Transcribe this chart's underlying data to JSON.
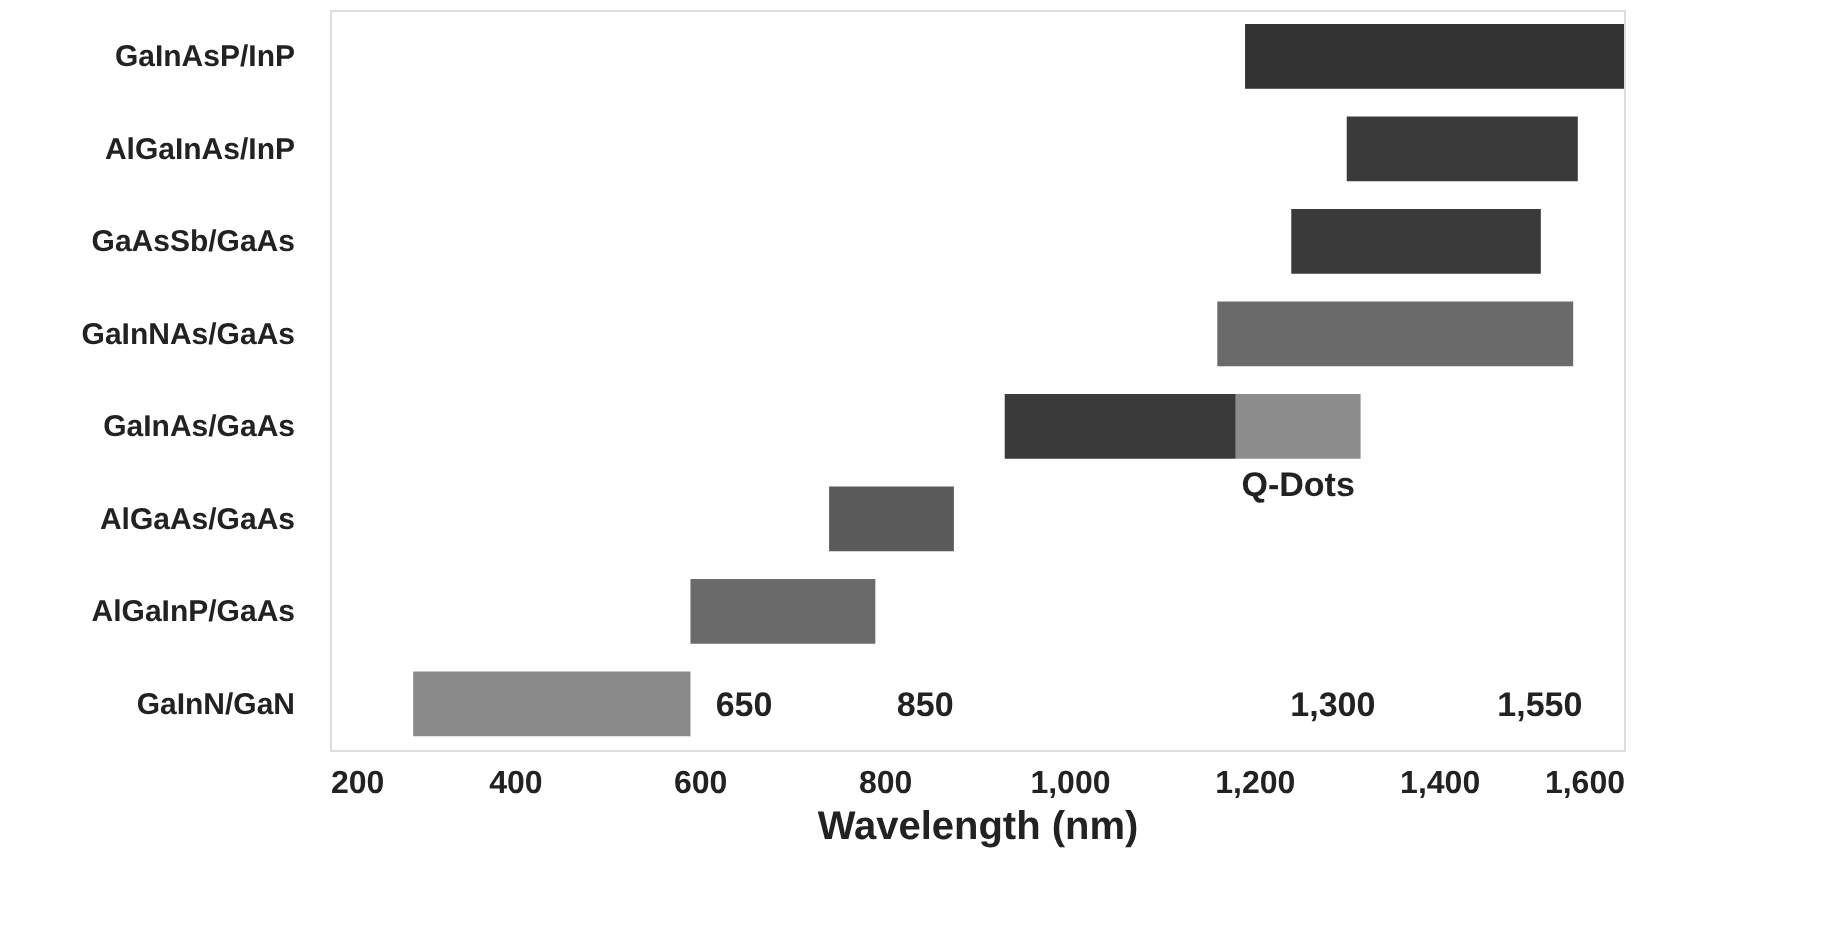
{
  "chart_data": {
    "type": "bar",
    "orientation": "horizontal",
    "xlabel": "Wavelength (nm)",
    "categories": [
      "GaInAsP/InP",
      "AlGaInAs/InP",
      "GaAsSb/GaAs",
      "GaInNAs/GaAs",
      "GaInAs/GaAs",
      "AlGaAs/GaAs",
      "AlGaInP/GaAs",
      "GaInN/GaN"
    ],
    "series": [
      {
        "colors": [
          "#333333",
          "#3a3a3a",
          "#3a3a3a",
          "#6a6a6a",
          "#3a3a3a",
          "#5a5a5a",
          "#6a6a6a",
          "#8a8a8a"
        ],
        "base": [
          1190,
          1300,
          1240,
          1160,
          930,
          740,
          590,
          290
        ],
        "values": [
          410,
          250,
          270,
          385,
          250,
          135,
          200,
          300
        ]
      },
      {
        "name": "Q-Dots",
        "color": "#8c8c8c",
        "base": [
          null,
          null,
          null,
          null,
          1180,
          null,
          null,
          null
        ],
        "values": [
          null,
          null,
          null,
          null,
          135,
          null,
          null,
          null
        ]
      }
    ],
    "xlim": [
      200,
      1600
    ],
    "xticks": [
      200,
      400,
      600,
      800,
      {
        "value": 1000,
        "label": "1,000"
      },
      {
        "value": 1200,
        "label": "1,200"
      },
      {
        "value": 1400,
        "label": "1,400"
      },
      {
        "value": 1600,
        "label": "1,600"
      }
    ],
    "annotations": [
      "650",
      "850",
      "1,300",
      "1,550"
    ],
    "grid": false
  }
}
